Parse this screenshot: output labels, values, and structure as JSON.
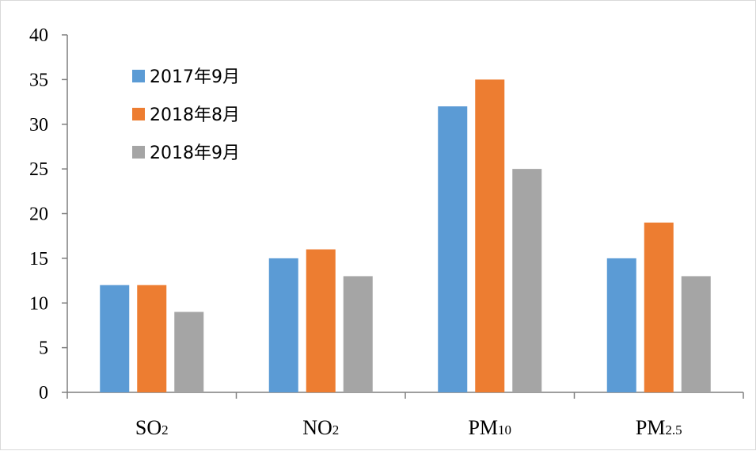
{
  "chart_data": {
    "type": "bar",
    "categories": [
      "SO",
      "NO",
      "PM",
      "PM"
    ],
    "category_subscripts": [
      "2",
      "2",
      "10",
      "2.5"
    ],
    "series": [
      {
        "name": "2017年9月",
        "color": "#5b9bd5",
        "values": [
          12,
          15,
          32,
          15
        ]
      },
      {
        "name": "2018年8月",
        "color": "#ed7d31",
        "values": [
          12,
          16,
          35,
          19
        ]
      },
      {
        "name": "2018年9月",
        "color": "#a5a5a5",
        "values": [
          9,
          13,
          25,
          13
        ]
      }
    ],
    "ylim": [
      0,
      40
    ],
    "yticks": [
      "0",
      "5",
      "10",
      "15",
      "20",
      "25",
      "30",
      "35",
      "40"
    ],
    "title": "",
    "xlabel": "",
    "ylabel": "",
    "grid": false,
    "legend_position": "top-left"
  }
}
